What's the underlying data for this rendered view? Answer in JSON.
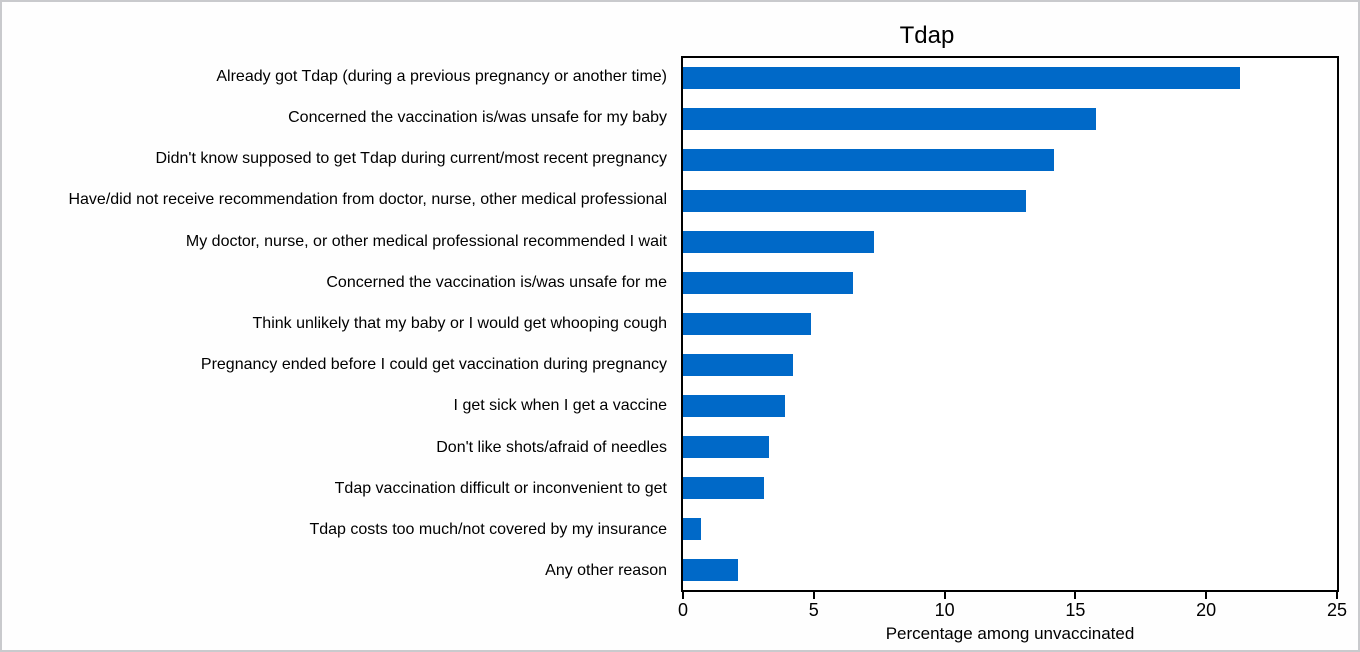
{
  "chart_data": {
    "type": "bar",
    "orientation": "horizontal",
    "title": "Tdap",
    "xlabel": "Percentage among unvaccinated",
    "categories": [
      "Already got Tdap (during a previous pregnancy or another time)",
      "Concerned the vaccination is/was unsafe for my baby",
      "Didn't know supposed to get Tdap during current/most recent pregnancy",
      "Have/did not receive recommendation from doctor, nurse, other medical professional",
      "My doctor, nurse, or other medical professional recommended I wait",
      "Concerned the vaccination is/was unsafe for me",
      "Think unlikely that my baby or I would get whooping cough",
      "Pregnancy ended before I could get vaccination during pregnancy",
      "I get sick when I get a vaccine",
      "Don't like shots/afraid of needles",
      "Tdap vaccination difficult or inconvenient to get",
      "Tdap costs too much/not covered by my insurance",
      "Any other reason"
    ],
    "values": [
      21.3,
      15.8,
      14.2,
      13.1,
      7.3,
      6.5,
      4.9,
      4.2,
      3.9,
      3.3,
      3.1,
      0.7,
      2.1
    ],
    "xlim": [
      0,
      25
    ],
    "xticks": [
      0,
      5,
      10,
      15,
      20,
      25
    ],
    "grid": false,
    "legend": "none",
    "colors": {
      "bar": "#0069c8",
      "axis": "#000000",
      "text": "#000000",
      "frame_border": "#c9cacd",
      "background": "#fefefe"
    }
  }
}
